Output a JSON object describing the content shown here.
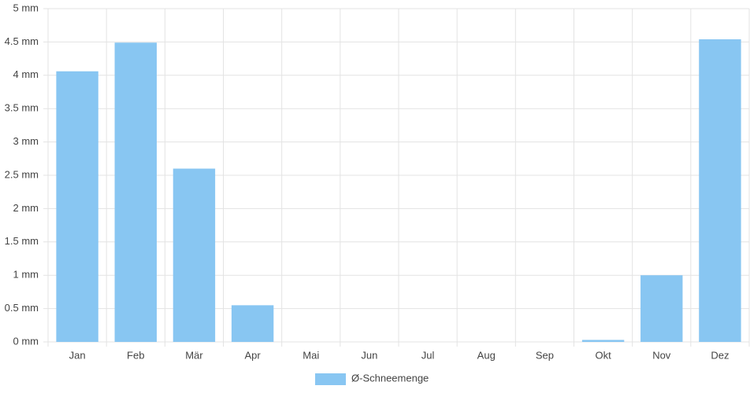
{
  "chart_data": {
    "type": "bar",
    "categories": [
      "Jan",
      "Feb",
      "Mär",
      "Apr",
      "Mai",
      "Jun",
      "Jul",
      "Aug",
      "Sep",
      "Okt",
      "Nov",
      "Dez"
    ],
    "series": [
      {
        "name": "Ø-Schneemenge",
        "color": "#88c6f2",
        "values": [
          4.06,
          4.49,
          2.6,
          0.55,
          0,
          0,
          0,
          0,
          0,
          0.03,
          1.0,
          4.54
        ]
      }
    ],
    "ylim": [
      0,
      5
    ],
    "yticks": [
      {
        "value": 0,
        "label": "0 mm"
      },
      {
        "value": 0.5,
        "label": "0.5 mm"
      },
      {
        "value": 1,
        "label": "1 mm"
      },
      {
        "value": 1.5,
        "label": "1.5 mm"
      },
      {
        "value": 2,
        "label": "2 mm"
      },
      {
        "value": 2.5,
        "label": "2.5 mm"
      },
      {
        "value": 3,
        "label": "3 mm"
      },
      {
        "value": 3.5,
        "label": "3.5 mm"
      },
      {
        "value": 4,
        "label": "4 mm"
      },
      {
        "value": 4.5,
        "label": "4.5 mm"
      },
      {
        "value": 5,
        "label": "5 mm"
      }
    ],
    "grid": true,
    "legend": "bottom"
  }
}
